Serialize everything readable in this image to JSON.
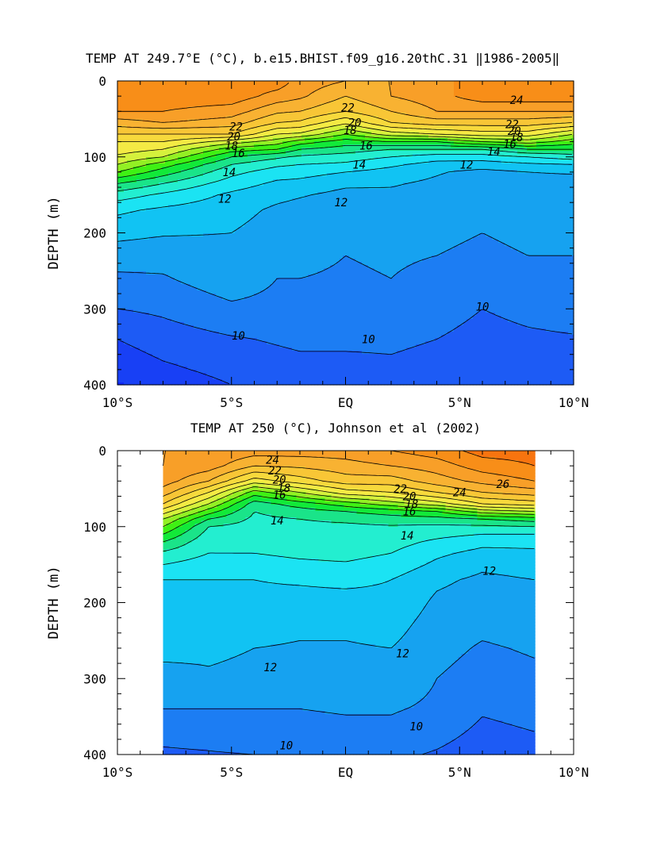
{
  "chart_data": [
    {
      "type": "contour",
      "title": "TEMP AT 249.7°E (°C), b.e15.BHIST.f09_g16.20thC.31 ‖1986-2005‖",
      "ylabel": "DEPTH (m)",
      "xlabel": "",
      "x_ticks": [
        "10°S",
        "5°S",
        "EQ",
        "5°N",
        "10°N"
      ],
      "x_tick_values": [
        -10,
        -5,
        0,
        5,
        10
      ],
      "y_ticks": [
        "0",
        "100",
        "200",
        "300",
        "400"
      ],
      "y_tick_values": [
        0,
        100,
        200,
        300,
        400
      ],
      "xlim": [
        -10,
        10
      ],
      "ylim": [
        0,
        400
      ],
      "y_inverted": true,
      "data_xlim": [
        -10,
        10
      ],
      "depth_levels": [
        0,
        20,
        40,
        55,
        70,
        80,
        90,
        100,
        110,
        120,
        135,
        150,
        170,
        200,
        230,
        260,
        300,
        340,
        380,
        400
      ],
      "profiles": [
        {
          "lat": -10,
          "temp": [
            25.6,
            25.6,
            25.0,
            23.5,
            22.0,
            21.0,
            20.5,
            19.8,
            19.0,
            18.0,
            16.0,
            14.5,
            13.2,
            12.3,
            11.5,
            10.8,
            10.0,
            9.0,
            8.3,
            7.9
          ]
        },
        {
          "lat": -8,
          "temp": [
            25.6,
            25.6,
            25.0,
            24.0,
            22.0,
            21.0,
            20.0,
            19.0,
            17.5,
            16.5,
            15.0,
            13.8,
            12.8,
            12.1,
            11.4,
            10.9,
            10.2,
            9.5,
            8.8,
            8.4
          ]
        },
        {
          "lat": -5,
          "temp": [
            25.6,
            25.6,
            24.5,
            23.5,
            22.0,
            19.5,
            17.5,
            16.0,
            15.0,
            14.3,
            13.5,
            12.8,
            12.4,
            12.0,
            11.7,
            11.6,
            10.8,
            9.9,
            9.3,
            9.0
          ]
        },
        {
          "lat": -3,
          "temp": [
            25.6,
            24.6,
            23.2,
            22.0,
            20.0,
            18.5,
            17.0,
            15.2,
            14.2,
            13.5,
            12.8,
            12.3,
            11.8,
            11.5,
            11.2,
            11.0,
            10.7,
            10.1,
            9.6,
            9.3
          ]
        },
        {
          "lat": -2,
          "temp": [
            24.6,
            24.2,
            23.0,
            21.8,
            19.8,
            17.5,
            16.0,
            14.8,
            14.0,
            13.4,
            12.7,
            12.1,
            11.6,
            11.4,
            11.2,
            11.0,
            10.7,
            10.2,
            9.7,
            9.4
          ]
        },
        {
          "lat": 0,
          "temp": [
            24.0,
            23.0,
            22.0,
            20.2,
            18.0,
            16.5,
            15.5,
            14.5,
            13.8,
            13.0,
            12.2,
            11.7,
            11.4,
            11.2,
            11.0,
            10.9,
            10.7,
            10.2,
            9.7,
            9.5
          ]
        },
        {
          "lat": 2,
          "temp": [
            24.0,
            24.0,
            23.0,
            22.0,
            19.5,
            17.0,
            15.0,
            14.0,
            13.2,
            12.6,
            12.1,
            11.8,
            11.5,
            11.3,
            11.1,
            11.0,
            10.8,
            10.2,
            9.8,
            9.6
          ]
        },
        {
          "lat": 4,
          "temp": [
            24.6,
            24.6,
            24.0,
            22.5,
            20.0,
            17.0,
            15.0,
            13.5,
            12.6,
            12.1,
            11.8,
            11.6,
            11.4,
            11.2,
            11.0,
            10.8,
            10.5,
            10.0,
            9.6,
            9.4
          ]
        },
        {
          "lat": 6,
          "temp": [
            25.6,
            25.6,
            24.0,
            22.5,
            20.5,
            18.0,
            15.0,
            13.5,
            12.5,
            11.7,
            11.4,
            11.3,
            11.2,
            11.0,
            10.8,
            10.6,
            10.0,
            9.6,
            9.3,
            9.1
          ]
        },
        {
          "lat": 8,
          "temp": [
            25.6,
            25.6,
            24.0,
            22.5,
            20.5,
            18.5,
            16.0,
            14.0,
            12.8,
            12.0,
            11.6,
            11.5,
            11.4,
            11.2,
            11.0,
            10.7,
            10.3,
            9.8,
            9.5,
            9.3
          ]
        },
        {
          "lat": 10,
          "temp": [
            25.6,
            25.6,
            24.0,
            22.0,
            19.0,
            17.5,
            16.0,
            14.5,
            13.0,
            12.1,
            11.6,
            11.5,
            11.4,
            11.2,
            11.0,
            10.8,
            10.5,
            9.9,
            9.6,
            9.5
          ]
        }
      ],
      "contour_labels": [
        {
          "text": "22",
          "lat": -4.8,
          "depth": 60
        },
        {
          "text": "20",
          "lat": -4.9,
          "depth": 73
        },
        {
          "text": "18",
          "lat": -5.0,
          "depth": 85
        },
        {
          "text": "16",
          "lat": -4.7,
          "depth": 95
        },
        {
          "text": "14",
          "lat": -5.1,
          "depth": 120
        },
        {
          "text": "12",
          "lat": -5.3,
          "depth": 155
        },
        {
          "text": "22",
          "lat": 0.1,
          "depth": 35
        },
        {
          "text": "20",
          "lat": 0.4,
          "depth": 55
        },
        {
          "text": "18",
          "lat": 0.2,
          "depth": 65
        },
        {
          "text": "16",
          "lat": 0.9,
          "depth": 85
        },
        {
          "text": "14",
          "lat": 0.6,
          "depth": 110
        },
        {
          "text": "12",
          "lat": -0.2,
          "depth": 160
        },
        {
          "text": "12",
          "lat": 5.3,
          "depth": 110
        },
        {
          "text": "24",
          "lat": 7.5,
          "depth": 25
        },
        {
          "text": "22",
          "lat": 7.3,
          "depth": 57
        },
        {
          "text": "20",
          "lat": 7.4,
          "depth": 66
        },
        {
          "text": "18",
          "lat": 7.5,
          "depth": 74
        },
        {
          "text": "16",
          "lat": 7.2,
          "depth": 83
        },
        {
          "text": "14",
          "lat": 6.5,
          "depth": 93
        },
        {
          "text": "10",
          "lat": -4.7,
          "depth": 335
        },
        {
          "text": "10",
          "lat": 1.0,
          "depth": 340
        },
        {
          "text": "10",
          "lat": 6.0,
          "depth": 297
        }
      ],
      "colorscale": [
        {
          "t": 7,
          "color": "#0a1af5"
        },
        {
          "t": 9,
          "color": "#1c4cf5"
        },
        {
          "t": 10,
          "color": "#1e6af5"
        },
        {
          "t": 11,
          "color": "#1a8ff0"
        },
        {
          "t": 12,
          "color": "#12b4f0"
        },
        {
          "t": 13,
          "color": "#10d2f5"
        },
        {
          "t": 14,
          "color": "#25f3f0"
        },
        {
          "t": 15,
          "color": "#20e8b0"
        },
        {
          "t": 16,
          "color": "#13e062"
        },
        {
          "t": 17,
          "color": "#10f210"
        },
        {
          "t": 18,
          "color": "#6ef018"
        },
        {
          "t": 19,
          "color": "#b8f030"
        },
        {
          "t": 20,
          "color": "#f2f248"
        },
        {
          "t": 22,
          "color": "#f8d038"
        },
        {
          "t": 24,
          "color": "#f8a830"
        },
        {
          "t": 26,
          "color": "#f88510"
        },
        {
          "t": 28,
          "color": "#f8400a"
        }
      ],
      "contour_interval": 1
    },
    {
      "type": "contour",
      "title": "TEMP AT 250 (°C), Johnson et al (2002)",
      "ylabel": "DEPTH (m)",
      "xlabel": "",
      "x_ticks": [
        "10°S",
        "5°S",
        "EQ",
        "5°N",
        "10°N"
      ],
      "x_tick_values": [
        -10,
        -5,
        0,
        5,
        10
      ],
      "y_ticks": [
        "0",
        "100",
        "200",
        "300",
        "400"
      ],
      "y_tick_values": [
        0,
        100,
        200,
        300,
        400
      ],
      "xlim": [
        -10,
        10
      ],
      "ylim": [
        0,
        400
      ],
      "y_inverted": true,
      "data_xlim": [
        -8,
        8.3
      ],
      "depth_levels": [
        0,
        20,
        40,
        55,
        70,
        80,
        90,
        100,
        110,
        120,
        135,
        150,
        170,
        200,
        230,
        260,
        300,
        340,
        380,
        400
      ],
      "profiles": [
        {
          "lat": -8,
          "temp": [
            25.0,
            25.0,
            24.5,
            23.5,
            22.0,
            20.5,
            19.0,
            18.0,
            17.0,
            16.0,
            14.8,
            14.0,
            13.0,
            12.8,
            12.6,
            12.5,
            11.4,
            11.0,
            10.2,
            9.8
          ]
        },
        {
          "lat": -6,
          "temp": [
            25.0,
            24.5,
            23.0,
            21.0,
            19.0,
            17.5,
            16.0,
            15.0,
            14.6,
            14.3,
            14.0,
            13.5,
            13.0,
            12.8,
            12.5,
            12.3,
            11.8,
            11.0,
            10.3,
            9.9
          ]
        },
        {
          "lat": -4,
          "temp": [
            24.5,
            23.0,
            20.5,
            17.5,
            15.5,
            15.0,
            14.8,
            14.6,
            14.5,
            14.4,
            14.0,
            13.6,
            13.0,
            12.8,
            12.4,
            12.0,
            11.6,
            11.0,
            10.5,
            10.0
          ]
        },
        {
          "lat": -2,
          "temp": [
            24.5,
            23.2,
            21.5,
            19.0,
            16.5,
            15.5,
            15.0,
            14.8,
            14.7,
            14.5,
            14.2,
            13.8,
            13.1,
            12.7,
            12.2,
            11.9,
            11.6,
            11.0,
            10.5,
            10.1
          ]
        },
        {
          "lat": 0,
          "temp": [
            24.5,
            23.6,
            22.5,
            20.5,
            17.5,
            16.0,
            15.2,
            14.8,
            14.7,
            14.5,
            14.3,
            13.9,
            13.2,
            12.7,
            12.2,
            11.9,
            11.6,
            11.1,
            10.6,
            10.2
          ]
        },
        {
          "lat": 2,
          "temp": [
            25.0,
            24.0,
            22.5,
            21.0,
            18.5,
            16.5,
            15.5,
            14.9,
            14.7,
            14.4,
            14.0,
            13.6,
            13.0,
            12.8,
            12.4,
            12.0,
            11.7,
            11.1,
            10.6,
            10.2
          ]
        },
        {
          "lat": 4,
          "temp": [
            25.5,
            24.5,
            23.5,
            22.0,
            19.5,
            17.0,
            15.6,
            14.8,
            14.3,
            13.8,
            13.2,
            12.8,
            12.2,
            11.8,
            11.5,
            11.3,
            11.0,
            10.8,
            10.2,
            9.9
          ]
        },
        {
          "lat": 6,
          "temp": [
            26.4,
            25.5,
            24.3,
            23.0,
            21.0,
            18.5,
            16.0,
            14.8,
            14.0,
            13.3,
            12.7,
            12.2,
            11.8,
            11.5,
            11.2,
            10.9,
            10.6,
            10.1,
            9.7,
            9.5
          ]
        },
        {
          "lat": 8.3,
          "temp": [
            26.4,
            26.0,
            25.0,
            23.5,
            21.5,
            19.0,
            16.5,
            15.0,
            14.0,
            13.3,
            12.8,
            12.4,
            12.0,
            11.7,
            11.4,
            11.1,
            10.8,
            10.3,
            9.9,
            9.7
          ]
        }
      ],
      "contour_labels": [
        {
          "text": "24",
          "lat": -3.2,
          "depth": 12
        },
        {
          "text": "22",
          "lat": -3.1,
          "depth": 26
        },
        {
          "text": "20",
          "lat": -2.9,
          "depth": 38
        },
        {
          "text": "18",
          "lat": -2.7,
          "depth": 49
        },
        {
          "text": "16",
          "lat": -2.9,
          "depth": 58
        },
        {
          "text": "14",
          "lat": -3.0,
          "depth": 92
        },
        {
          "text": "22",
          "lat": 2.4,
          "depth": 50
        },
        {
          "text": "20",
          "lat": 2.8,
          "depth": 60
        },
        {
          "text": "18",
          "lat": 2.9,
          "depth": 70
        },
        {
          "text": "16",
          "lat": 2.8,
          "depth": 80
        },
        {
          "text": "14",
          "lat": 2.7,
          "depth": 112
        },
        {
          "text": "24",
          "lat": 5.0,
          "depth": 55
        },
        {
          "text": "26",
          "lat": 6.9,
          "depth": 44
        },
        {
          "text": "12",
          "lat": 6.3,
          "depth": 158
        },
        {
          "text": "12",
          "lat": -3.3,
          "depth": 285
        },
        {
          "text": "12",
          "lat": 2.5,
          "depth": 267
        },
        {
          "text": "10",
          "lat": -2.6,
          "depth": 388
        },
        {
          "text": "10",
          "lat": 3.1,
          "depth": 363
        }
      ],
      "colorscale": [
        {
          "t": 7,
          "color": "#0a1af5"
        },
        {
          "t": 9,
          "color": "#1c4cf5"
        },
        {
          "t": 10,
          "color": "#1e6af5"
        },
        {
          "t": 11,
          "color": "#1a8ff0"
        },
        {
          "t": 12,
          "color": "#12b4f0"
        },
        {
          "t": 13,
          "color": "#10d2f5"
        },
        {
          "t": 14,
          "color": "#25f3f0"
        },
        {
          "t": 15,
          "color": "#20e8b0"
        },
        {
          "t": 16,
          "color": "#13e062"
        },
        {
          "t": 17,
          "color": "#10f210"
        },
        {
          "t": 18,
          "color": "#6ef018"
        },
        {
          "t": 19,
          "color": "#b8f030"
        },
        {
          "t": 20,
          "color": "#f2f248"
        },
        {
          "t": 22,
          "color": "#f8d038"
        },
        {
          "t": 24,
          "color": "#f8a830"
        },
        {
          "t": 26,
          "color": "#f88510"
        },
        {
          "t": 28,
          "color": "#f8400a"
        }
      ],
      "contour_interval": 1
    }
  ]
}
